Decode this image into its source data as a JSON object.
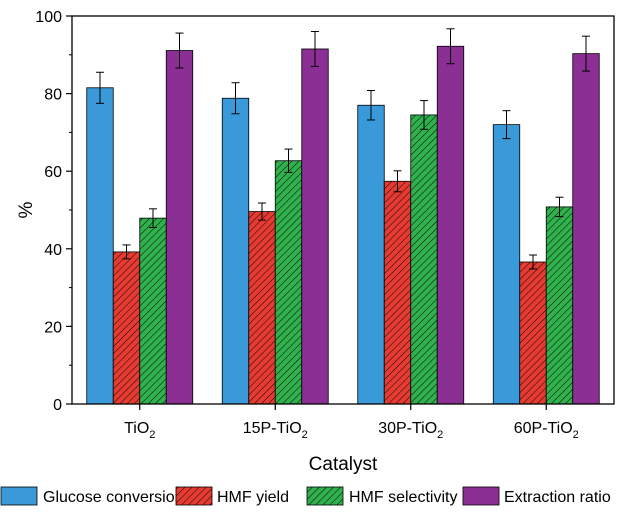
{
  "chart_data": {
    "type": "bar",
    "xlabel": "Catalyst",
    "ylabel": "%",
    "ylim": [
      0,
      100
    ],
    "yticks": [
      0,
      20,
      40,
      60,
      80,
      100
    ],
    "grid": false,
    "legend_position": "bottom",
    "categories": [
      {
        "base": "TiO",
        "sub": "2"
      },
      {
        "base": "15P-TiO",
        "sub": "2"
      },
      {
        "base": "30P-TiO",
        "sub": "2"
      },
      {
        "base": "60P-TiO",
        "sub": "2"
      }
    ],
    "series": [
      {
        "name": "Glucose conversion",
        "color": "#3A9AD9",
        "pattern": "none",
        "values": [
          81.5,
          78.8,
          77.0,
          72.0
        ],
        "errors": [
          4.0,
          4.0,
          3.8,
          3.6
        ]
      },
      {
        "name": "HMF yield",
        "color": "#E83A30",
        "pattern": "hatch",
        "values": [
          39.2,
          49.6,
          57.4,
          36.6
        ],
        "errors": [
          1.8,
          2.2,
          2.7,
          1.8
        ]
      },
      {
        "name": "HMF selectivity",
        "color": "#2FB14C",
        "pattern": "hatch",
        "values": [
          47.9,
          62.7,
          74.5,
          50.8
        ],
        "errors": [
          2.4,
          3.0,
          3.7,
          2.5
        ]
      },
      {
        "name": "Extraction ratio",
        "color": "#8B2F94",
        "pattern": "none",
        "values": [
          91.1,
          91.5,
          92.2,
          90.3
        ],
        "errors": [
          4.5,
          4.5,
          4.5,
          4.5
        ]
      }
    ]
  }
}
